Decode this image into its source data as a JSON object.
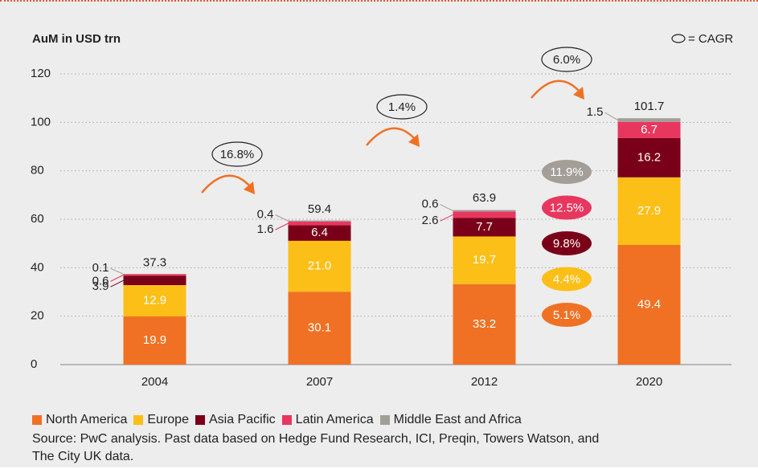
{
  "chart_data": {
    "type": "bar",
    "stacked": true,
    "y_label": "AuM in USD trn",
    "legend_note": "= CAGR",
    "categories": [
      "2004",
      "2007",
      "2012",
      "2020"
    ],
    "series": [
      {
        "name": "North America",
        "color": "#f07124",
        "values": [
          19.9,
          30.1,
          33.2,
          49.4
        ],
        "cagr": "5.1%"
      },
      {
        "name": "Europe",
        "color": "#fbbf17",
        "values": [
          12.9,
          21,
          19.7,
          27.9
        ],
        "value_labels": [
          "12.9",
          "21.0",
          "19.7",
          "27.9"
        ],
        "cagr": "4.4%"
      },
      {
        "name": "Asia Pacific",
        "color": "#7a0019",
        "values": [
          3.9,
          6.4,
          7.7,
          16.2
        ],
        "cagr": "9.8%"
      },
      {
        "name": "Latin America",
        "color": "#e8375f",
        "values": [
          0.6,
          1.6,
          2.6,
          6.7
        ],
        "cagr": "12.5%"
      },
      {
        "name": "Middle East and Africa",
        "color": "#a39e98",
        "values": [
          0.1,
          0.4,
          0.6,
          1.5
        ],
        "cagr": "11.9%"
      }
    ],
    "totals": [
      37.3,
      59.4,
      63.9,
      101.7
    ],
    "period_cagr": [
      "16.8%",
      "1.4%",
      "6.0%"
    ],
    "ylim": [
      0,
      120
    ],
    "yticks": [
      0,
      20,
      40,
      60,
      80,
      100,
      120
    ],
    "grid": true,
    "source": [
      "Source: PwC analysis. Past data based on Hedge Fund Research, ICI, Preqin, Towers Watson, and",
      "The City UK data."
    ]
  }
}
